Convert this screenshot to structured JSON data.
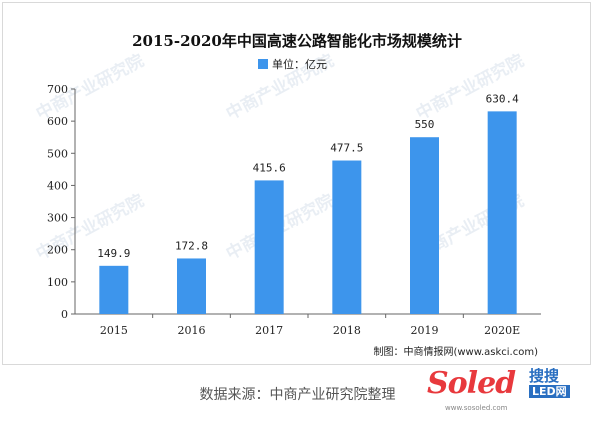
{
  "chart_data": {
    "type": "bar",
    "title": "2015-2020年中国高速公路智能化市场规模统计",
    "legend": {
      "label": "单位：亿元",
      "position": "top",
      "color": "#3d95ec"
    },
    "categories": [
      "2015",
      "2016",
      "2017",
      "2018",
      "2019",
      "2020E"
    ],
    "series": [
      {
        "values": [
          149.9,
          172.8,
          415.6,
          477.5,
          550,
          630.4
        ]
      }
    ],
    "data_labels": [
      "149.9",
      "172.8",
      "415.6",
      "477.5",
      "550",
      "630.4"
    ],
    "ylim": [
      0,
      700
    ],
    "yticks": [
      0,
      100,
      200,
      300,
      400,
      500,
      600,
      700
    ],
    "grid": false,
    "bar_color": "#3d95ec"
  },
  "credit": "制图：中商情报网(www.askci.com)",
  "watermark": "中商产业研究院",
  "source_text": "数据来源：中商产业研究院整理",
  "brand": {
    "word": "Soled",
    "cn": "搜搜",
    "led": "LED网",
    "url": "www.sosoled.com"
  }
}
